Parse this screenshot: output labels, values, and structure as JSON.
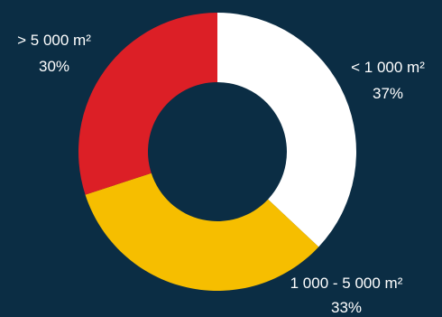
{
  "background": "#0b2d44",
  "chart_data": {
    "type": "pie",
    "donut": true,
    "start": "12 o'clock",
    "direction": "clockwise",
    "slices": [
      {
        "label": "< 1 000 m²",
        "value": 37,
        "value_label": "37%",
        "color": "#ffffff"
      },
      {
        "label": "1 000 - 5 000 m²",
        "value": 33,
        "value_label": "33%",
        "color": "#f6be00"
      },
      {
        "label": "> 5 000 m²",
        "value": 30,
        "value_label": "30%",
        "color": "#dc1f26"
      }
    ]
  }
}
